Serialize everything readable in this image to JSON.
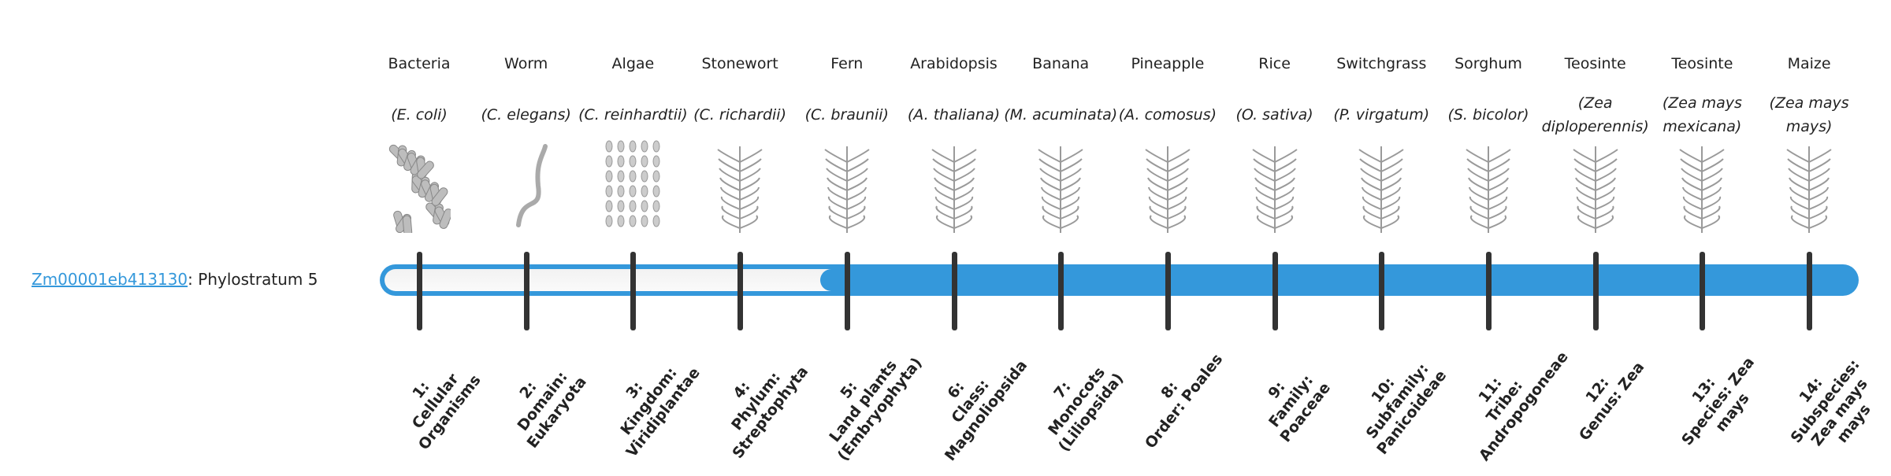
{
  "gene": {
    "id": "Zm00001eb413130",
    "suffix": ": Phylostratum 5"
  },
  "progress": {
    "current_stratum": 5,
    "total_strata": 14
  },
  "colors": {
    "bar": "#3498db",
    "tick": "#333333",
    "link": "#3498db"
  },
  "organisms": [
    {
      "common": "Bacteria",
      "latin": "(E. coli)",
      "icon": "bacteria-illustration"
    },
    {
      "common": "Worm",
      "latin": "(C. elegans)",
      "icon": "worm-illustration"
    },
    {
      "common": "Algae",
      "latin": "(C. reinhardtii)",
      "icon": "algae-illustration"
    },
    {
      "common": "Stonewort",
      "latin": "(C. richardii)",
      "icon": "stonewort-illustration"
    },
    {
      "common": "Fern",
      "latin": "(C. braunii)",
      "icon": "fern-illustration"
    },
    {
      "common": "Arabidopsis",
      "latin": "(A. thaliana)",
      "icon": "arabidopsis-illustration"
    },
    {
      "common": "Banana",
      "latin": "(M. acuminata)",
      "icon": "banana-illustration"
    },
    {
      "common": "Pineapple",
      "latin": "(A. comosus)",
      "icon": "pineapple-illustration"
    },
    {
      "common": "Rice",
      "latin": "(O. sativa)",
      "icon": "rice-illustration"
    },
    {
      "common": "Switchgrass",
      "latin": "(P. virgatum)",
      "icon": "switchgrass-illustration"
    },
    {
      "common": "Sorghum",
      "latin": "(S. bicolor)",
      "icon": "sorghum-illustration"
    },
    {
      "common": "Teosinte",
      "latin": "(Zea diploperennis)",
      "icon": "teosinte-illustration"
    },
    {
      "common": "Teosinte",
      "latin": "(Zea mays mexicana)",
      "icon": "teosinte-illustration"
    },
    {
      "common": "Maize",
      "latin": "(Zea mays mays)",
      "icon": "maize-illustration"
    }
  ],
  "strata": [
    {
      "num": "1:",
      "name": "Cellular Organisms"
    },
    {
      "num": "2:",
      "name": "Domain: Eukaryota"
    },
    {
      "num": "3:",
      "name": "Kingdom: Viridiplantae"
    },
    {
      "num": "4:",
      "name": "Phylum: Streptophyta"
    },
    {
      "num": "5:",
      "name": "Land plants (Embryophyta)"
    },
    {
      "num": "6:",
      "name": "Class: Magnoliopsida"
    },
    {
      "num": "7:",
      "name": "Monocots (Liliopsida)"
    },
    {
      "num": "8:",
      "name": "Order: Poales"
    },
    {
      "num": "9:",
      "name": "Family: Poaceae"
    },
    {
      "num": "10:",
      "name": "Subfamily: Panicoideae"
    },
    {
      "num": "11:",
      "name": "Tribe: Andropogoneae"
    },
    {
      "num": "12:",
      "name": "Genus: Zea"
    },
    {
      "num": "13:",
      "name": "Species: Zea mays"
    },
    {
      "num": "14:",
      "name": "Subspecies: Zea mays mays"
    }
  ]
}
